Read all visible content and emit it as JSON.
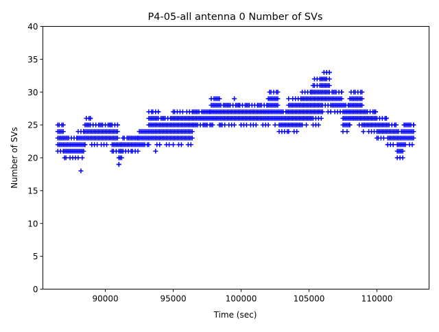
{
  "chart_data": {
    "type": "scatter",
    "title": "P4-05-all antenna 0 Number of SVs",
    "xlabel": "Time (sec)",
    "ylabel": "Number of SVs",
    "xlim": [
      85400,
      113840
    ],
    "ylim": [
      0,
      40
    ],
    "xticks": [
      90000,
      95000,
      100000,
      105000,
      110000
    ],
    "yticks": [
      0,
      5,
      10,
      15,
      20,
      25,
      30,
      35,
      40
    ],
    "grid": false,
    "marker": "+",
    "color": "#0000ff",
    "sample_step_sec": 100,
    "series": [
      {
        "name": "antenna 0",
        "segments_note": "time ranges with min/max SV counts observed",
        "segments": [
          [
            86500,
            87000,
            21,
            25
          ],
          [
            87000,
            88000,
            20,
            23
          ],
          [
            88000,
            88500,
            20,
            24
          ],
          [
            88500,
            89000,
            22,
            26
          ],
          [
            89000,
            90500,
            22,
            25
          ],
          [
            90500,
            91000,
            21,
            25
          ],
          [
            91000,
            91300,
            19,
            22
          ],
          [
            91300,
            92500,
            21,
            23
          ],
          [
            92500,
            93200,
            22,
            24
          ],
          [
            93200,
            94000,
            22,
            27
          ],
          [
            94000,
            95000,
            22,
            26
          ],
          [
            95000,
            96500,
            22,
            27
          ],
          [
            96500,
            97800,
            25,
            27
          ],
          [
            97800,
            98500,
            25,
            29
          ],
          [
            98500,
            100000,
            25,
            28
          ],
          [
            100000,
            102000,
            25,
            28
          ],
          [
            102000,
            102800,
            25,
            30
          ],
          [
            102800,
            103500,
            24,
            27
          ],
          [
            103500,
            104500,
            24,
            29
          ],
          [
            104500,
            105300,
            25,
            30
          ],
          [
            105300,
            106000,
            25,
            32
          ],
          [
            106000,
            106600,
            27,
            33
          ],
          [
            106600,
            107500,
            27,
            30
          ],
          [
            107500,
            108000,
            24,
            28
          ],
          [
            108000,
            109000,
            25,
            30
          ],
          [
            109000,
            110000,
            24,
            27
          ],
          [
            110000,
            110800,
            23,
            26
          ],
          [
            110800,
            111500,
            22,
            25
          ],
          [
            111500,
            112000,
            20,
            24
          ],
          [
            112000,
            112800,
            22,
            25
          ]
        ],
        "outliers": [
          [
            88200,
            18
          ],
          [
            93700,
            21
          ],
          [
            99500,
            29
          ],
          [
            106300,
            33
          ]
        ]
      }
    ]
  }
}
